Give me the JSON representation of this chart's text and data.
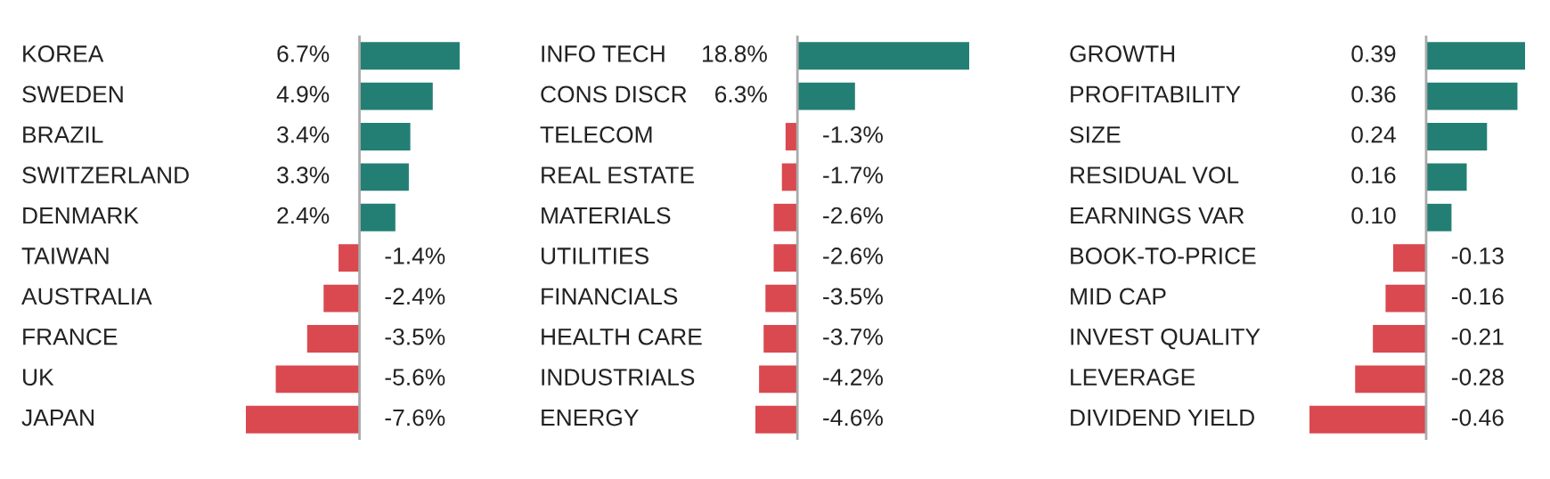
{
  "chart_data": [
    {
      "type": "bar",
      "orientation": "horizontal",
      "categories": [
        "KOREA",
        "SWEDEN",
        "BRAZIL",
        "SWITZERLAND",
        "DENMARK",
        "TAIWAN",
        "AUSTRALIA",
        "FRANCE",
        "UK",
        "JAPAN"
      ],
      "values": [
        6.7,
        4.9,
        3.4,
        3.3,
        2.4,
        -1.4,
        -2.4,
        -3.5,
        -5.6,
        -7.6
      ],
      "value_labels": [
        "6.7%",
        "4.9%",
        "3.4%",
        "3.3%",
        "2.4%",
        "-1.4%",
        "-2.4%",
        "-3.5%",
        "-5.6%",
        "-7.6%"
      ],
      "colors": [
        "#237f74",
        "#237f74",
        "#237f74",
        "#237f74",
        "#237f74",
        "#d9494f",
        "#d9494f",
        "#d9494f",
        "#d9494f",
        "#d9494f"
      ]
    },
    {
      "type": "bar",
      "orientation": "horizontal",
      "categories": [
        "INFO TECH",
        "CONS DISCR",
        "TELECOM",
        "REAL ESTATE",
        "MATERIALS",
        "UTILITIES",
        "FINANCIALS",
        "HEALTH CARE",
        "INDUSTRIALS",
        "ENERGY"
      ],
      "values": [
        18.8,
        6.3,
        -1.3,
        -1.7,
        -2.6,
        -2.6,
        -3.5,
        -3.7,
        -4.2,
        -4.6
      ],
      "value_labels": [
        "18.8%",
        "6.3%",
        "-1.3%",
        "-1.7%",
        "-2.6%",
        "-2.6%",
        "-3.5%",
        "-3.7%",
        "-4.2%",
        "-4.6%"
      ],
      "colors": [
        "#237f74",
        "#237f74",
        "#d9494f",
        "#d9494f",
        "#d9494f",
        "#d9494f",
        "#d9494f",
        "#d9494f",
        "#d9494f",
        "#d9494f"
      ]
    },
    {
      "type": "bar",
      "orientation": "horizontal",
      "categories": [
        "GROWTH",
        "PROFITABILITY",
        "SIZE",
        "RESIDUAL VOL",
        "EARNINGS VAR",
        "BOOK-TO-PRICE",
        "MID CAP",
        "INVEST QUALITY",
        "LEVERAGE",
        "DIVIDEND YIELD"
      ],
      "values": [
        0.39,
        0.36,
        0.24,
        0.16,
        0.1,
        -0.13,
        -0.16,
        -0.21,
        -0.28,
        -0.46
      ],
      "value_labels": [
        "0.39",
        "0.36",
        "0.24",
        "0.16",
        "0.10",
        "-0.13",
        "-0.16",
        "-0.21",
        "-0.28",
        "-0.46"
      ],
      "colors": [
        "#237f74",
        "#237f74",
        "#237f74",
        "#237f74",
        "#237f74",
        "#d9494f",
        "#d9494f",
        "#d9494f",
        "#d9494f",
        "#d9494f"
      ]
    }
  ]
}
